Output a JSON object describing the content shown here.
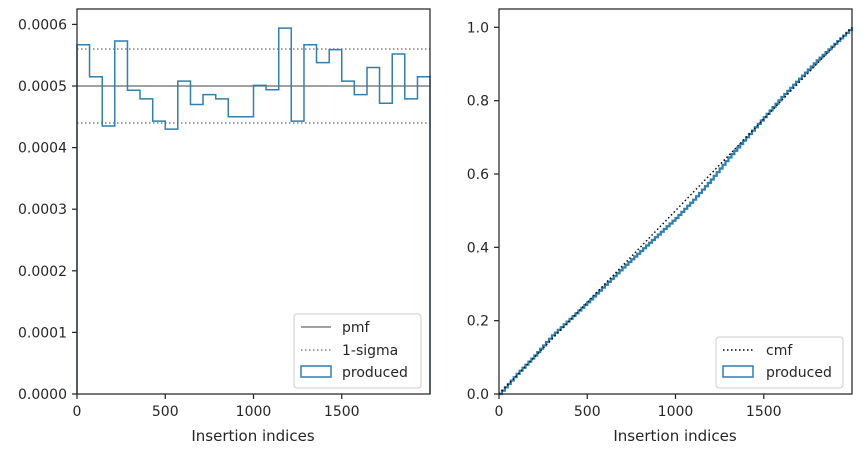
{
  "chart_data": [
    {
      "type": "histogram-step",
      "title": "",
      "xlabel": "Insertion indices",
      "ylabel": "",
      "xlim": [
        0,
        2000
      ],
      "ylim": [
        0,
        0.000625
      ],
      "x_ticks": [
        0,
        500,
        1000,
        1500
      ],
      "x_tick_labels": [
        "0",
        "500",
        "1000",
        "1500"
      ],
      "y_ticks": [
        0,
        0.0001,
        0.0002,
        0.0003,
        0.0004,
        0.0005,
        0.0006
      ],
      "y_tick_labels": [
        "0.0000",
        "0.0001",
        "0.0002",
        "0.0003",
        "0.0004",
        "0.0005",
        "0.0006"
      ],
      "grid": false,
      "legend_position": "lower-right",
      "reference_lines": [
        {
          "name": "pmf",
          "value": 0.0005,
          "style": "solid",
          "color": "#808080"
        },
        {
          "name": "1-sigma",
          "values": [
            0.00044,
            0.00056
          ],
          "style": "dotted",
          "color": "#808080"
        }
      ],
      "series": [
        {
          "name": "produced",
          "color": "#2f7fb0",
          "bin_edges": [
            0,
            71,
            143,
            214,
            286,
            357,
            429,
            500,
            571,
            643,
            714,
            786,
            857,
            929,
            1000,
            1071,
            1143,
            1214,
            1286,
            1357,
            1429,
            1500,
            1571,
            1643,
            1714,
            1786,
            1857,
            1929,
            2000
          ],
          "values": [
            0.000567,
            0.000515,
            0.000435,
            0.000573,
            0.000493,
            0.000479,
            0.000443,
            0.00043,
            0.000508,
            0.00047,
            0.000486,
            0.000479,
            0.00045,
            0.00045,
            0.000501,
            0.000494,
            0.000594,
            0.000443,
            0.000567,
            0.000538,
            0.000559,
            0.000508,
            0.000486,
            0.00053,
            0.000472,
            0.000552,
            0.000479,
            0.000515
          ]
        }
      ],
      "legend": [
        {
          "label": "pmf",
          "kind": "solid-line",
          "color": "#808080"
        },
        {
          "label": "1-sigma",
          "kind": "dotted-line",
          "color": "#808080"
        },
        {
          "label": "produced",
          "kind": "box",
          "color": "#2f7fb0"
        }
      ]
    },
    {
      "type": "line",
      "title": "",
      "xlabel": "Insertion indices",
      "ylabel": "",
      "xlim": [
        0,
        2000
      ],
      "ylim": [
        0,
        1.05
      ],
      "x_ticks": [
        0,
        500,
        1000,
        1500
      ],
      "x_tick_labels": [
        "0",
        "500",
        "1000",
        "1500"
      ],
      "y_ticks": [
        0,
        0.2,
        0.4,
        0.6,
        0.8,
        1.0
      ],
      "y_tick_labels": [
        "0.0",
        "0.2",
        "0.4",
        "0.6",
        "0.8",
        "1.0"
      ],
      "grid": false,
      "legend_position": "lower-right",
      "series": [
        {
          "name": "cmf",
          "style": "dotted",
          "color": "#000000",
          "x": [
            0,
            2000
          ],
          "y": [
            0,
            1.0
          ]
        },
        {
          "name": "produced",
          "style": "step",
          "color": "#2f7fb0",
          "x": [
            0,
            100,
            200,
            300,
            400,
            500,
            600,
            700,
            800,
            900,
            1000,
            1100,
            1200,
            1300,
            1400,
            1500,
            1600,
            1700,
            1800,
            1900,
            2000
          ],
          "y": [
            0,
            0.055,
            0.105,
            0.16,
            0.205,
            0.25,
            0.298,
            0.345,
            0.39,
            0.435,
            0.48,
            0.53,
            0.585,
            0.645,
            0.7,
            0.755,
            0.81,
            0.86,
            0.91,
            0.955,
            1.0
          ]
        }
      ],
      "legend": [
        {
          "label": "cmf",
          "kind": "dotted-line",
          "color": "#000000"
        },
        {
          "label": "produced",
          "kind": "box",
          "color": "#2f7fb0"
        }
      ]
    }
  ]
}
